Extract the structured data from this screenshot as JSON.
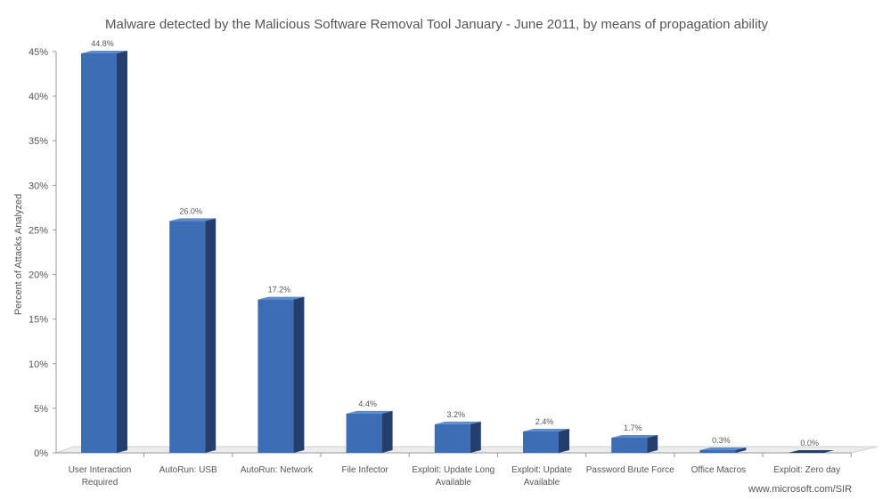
{
  "chart_data": {
    "type": "bar",
    "title": "Malware detected by the Malicious Software Removal Tool January - June 2011, by means of propagation ability",
    "ylabel": "Percent of Attacks Analyzed",
    "xlabel": "",
    "ylim": [
      0,
      45
    ],
    "yticks": [
      "0%",
      "5%",
      "10%",
      "15%",
      "20%",
      "25%",
      "30%",
      "35%",
      "40%",
      "45%"
    ],
    "grid": false,
    "categories": [
      [
        "User Interaction",
        "Required"
      ],
      [
        "AutoRun: USB"
      ],
      [
        "AutoRun: Network"
      ],
      [
        "File Infector"
      ],
      [
        "Exploit: Update Long",
        "Available"
      ],
      [
        "Exploit: Update",
        "Available"
      ],
      [
        "Password Brute Force"
      ],
      [
        "Office Macros"
      ],
      [
        "Exploit: Zero day"
      ]
    ],
    "values": [
      44.8,
      26.0,
      17.2,
      4.4,
      3.2,
      2.4,
      1.7,
      0.3,
      0.0
    ],
    "value_labels": [
      "44.8%",
      "26.0%",
      "17.2%",
      "4.4%",
      "3.2%",
      "2.4%",
      "1.7%",
      "0.3%",
      "0.0%"
    ],
    "credit": "www.microsoft.com/SIR"
  },
  "colors": {
    "bar_front": "#3c6db5",
    "bar_side": "#243f6e",
    "bar_top": "#5a8bd0",
    "floor": "#ececec",
    "axis": "#999999",
    "text": "#555555"
  }
}
